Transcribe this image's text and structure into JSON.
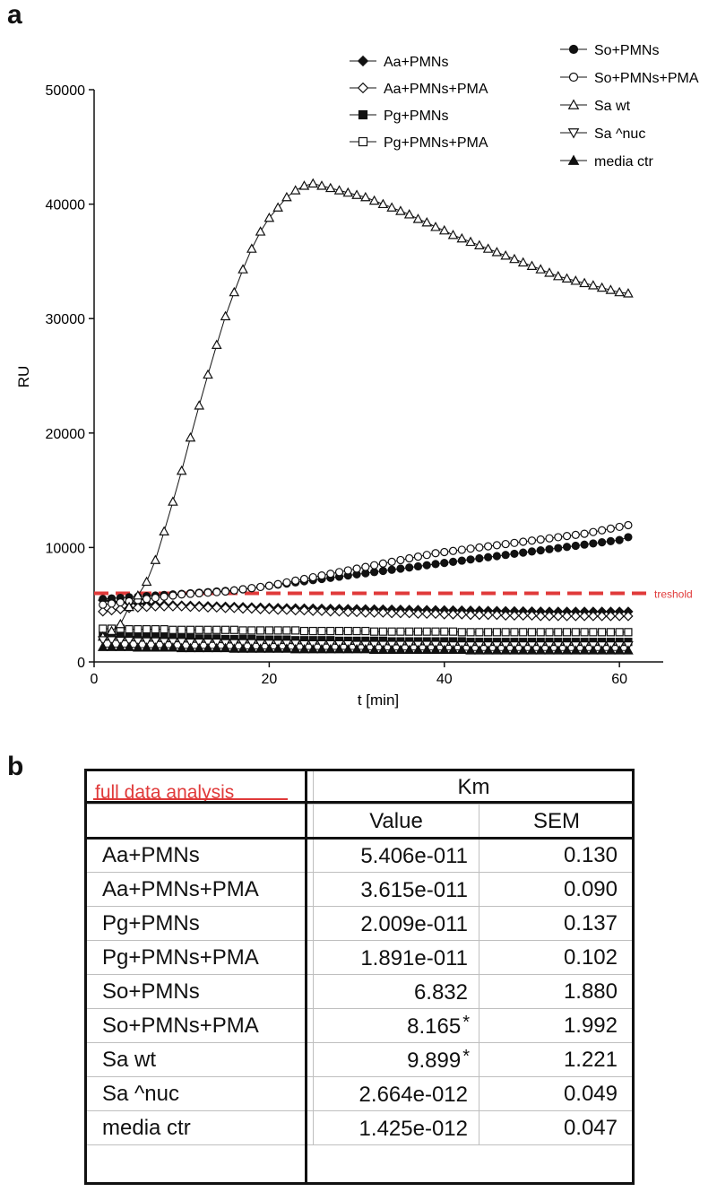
{
  "panel_a_label": "a",
  "panel_b_label": "b",
  "chart_data": {
    "type": "line",
    "title": "",
    "xlabel": "t [min]",
    "ylabel": "RU",
    "xlim": [
      0,
      65
    ],
    "ylim": [
      0,
      50000
    ],
    "xticks": [
      0,
      20,
      40,
      60
    ],
    "yticks": [
      0,
      10000,
      20000,
      30000,
      40000,
      50000
    ],
    "xtick_labels": [
      "0",
      "20",
      "40",
      "60"
    ],
    "ytick_labels": [
      "0",
      "10000",
      "20000",
      "30000",
      "40000",
      "50000"
    ],
    "x": [
      1,
      2,
      3,
      4,
      5,
      6,
      7,
      8,
      9,
      10,
      11,
      12,
      13,
      14,
      15,
      16,
      17,
      18,
      19,
      20,
      21,
      22,
      23,
      24,
      25,
      26,
      27,
      28,
      29,
      30,
      31,
      32,
      33,
      34,
      35,
      36,
      37,
      38,
      39,
      40,
      41,
      42,
      43,
      44,
      45,
      46,
      47,
      48,
      49,
      50,
      51,
      52,
      53,
      54,
      55,
      56,
      57,
      58,
      59,
      60,
      61
    ],
    "threshold": {
      "value": 6000,
      "label": "treshold",
      "color": "#e03a3a"
    },
    "series": [
      {
        "name": "Aa+PMNs",
        "marker": "diamond-filled",
        "values": [
          5400,
          5300,
          5200,
          5150,
          5100,
          5050,
          5000,
          4980,
          4960,
          4940,
          4920,
          4900,
          4880,
          4860,
          4840,
          4820,
          4800,
          4780,
          4760,
          4740,
          4720,
          4700,
          4690,
          4680,
          4670,
          4660,
          4650,
          4640,
          4630,
          4620,
          4610,
          4600,
          4590,
          4580,
          4570,
          4560,
          4550,
          4540,
          4530,
          4520,
          4510,
          4500,
          4490,
          4480,
          4470,
          4460,
          4450,
          4440,
          4430,
          4420,
          4410,
          4400,
          4400,
          4400,
          4400,
          4400,
          4400,
          4400,
          4400,
          4400,
          4400
        ]
      },
      {
        "name": "Aa+PMNs+PMA",
        "marker": "diamond-open",
        "values": [
          4400,
          4500,
          4600,
          4700,
          4750,
          4800,
          4850,
          4850,
          4850,
          4850,
          4800,
          4800,
          4750,
          4750,
          4700,
          4700,
          4650,
          4650,
          4600,
          4600,
          4550,
          4550,
          4500,
          4500,
          4450,
          4450,
          4400,
          4400,
          4350,
          4350,
          4300,
          4300,
          4300,
          4250,
          4250,
          4250,
          4200,
          4200,
          4200,
          4150,
          4150,
          4150,
          4100,
          4100,
          4100,
          4100,
          4050,
          4050,
          4050,
          4050,
          4000,
          4000,
          4000,
          4000,
          4000,
          4000,
          4000,
          4000,
          4000,
          4000,
          4000
        ]
      },
      {
        "name": "Pg+PMNs",
        "marker": "square-filled",
        "values": [
          2300,
          2300,
          2250,
          2250,
          2200,
          2200,
          2150,
          2150,
          2100,
          2100,
          2100,
          2050,
          2050,
          2050,
          2000,
          2000,
          2000,
          2000,
          1950,
          1950,
          1950,
          1950,
          1900,
          1900,
          1900,
          1900,
          1900,
          1850,
          1850,
          1850,
          1850,
          1850,
          1850,
          1800,
          1800,
          1800,
          1800,
          1800,
          1800,
          1800,
          1800,
          1800,
          1750,
          1750,
          1750,
          1750,
          1750,
          1750,
          1750,
          1750,
          1750,
          1750,
          1750,
          1750,
          1750,
          1750,
          1750,
          1750,
          1750,
          1750,
          1750
        ]
      },
      {
        "name": "Pg+PMNs+PMA",
        "marker": "square-open",
        "values": [
          2900,
          2900,
          2900,
          2850,
          2850,
          2850,
          2850,
          2850,
          2800,
          2800,
          2800,
          2800,
          2800,
          2800,
          2800,
          2800,
          2750,
          2750,
          2750,
          2750,
          2750,
          2750,
          2750,
          2700,
          2700,
          2700,
          2700,
          2700,
          2700,
          2700,
          2700,
          2650,
          2650,
          2650,
          2650,
          2650,
          2650,
          2650,
          2650,
          2650,
          2650,
          2600,
          2600,
          2600,
          2600,
          2600,
          2600,
          2600,
          2600,
          2600,
          2600,
          2600,
          2600,
          2600,
          2600,
          2600,
          2600,
          2600,
          2600,
          2600,
          2600
        ]
      },
      {
        "name": "So+PMNs",
        "marker": "circle-filled",
        "values": [
          5500,
          5550,
          5600,
          5650,
          5700,
          5750,
          5800,
          5850,
          5900,
          5950,
          6000,
          6050,
          6100,
          6150,
          6200,
          6250,
          6350,
          6450,
          6550,
          6650,
          6750,
          6850,
          6950,
          7050,
          7150,
          7250,
          7350,
          7450,
          7550,
          7650,
          7750,
          7850,
          7950,
          8050,
          8150,
          8250,
          8350,
          8450,
          8550,
          8650,
          8750,
          8850,
          8950,
          9050,
          9150,
          9250,
          9350,
          9450,
          9550,
          9650,
          9750,
          9850,
          9950,
          10050,
          10150,
          10250,
          10350,
          10450,
          10550,
          10650,
          10900
        ]
      },
      {
        "name": "So+PMNs+PMA",
        "marker": "circle-open",
        "values": [
          5000,
          5100,
          5200,
          5300,
          5400,
          5500,
          5600,
          5700,
          5800,
          5900,
          5950,
          6000,
          6050,
          6100,
          6150,
          6250,
          6350,
          6450,
          6550,
          6650,
          6800,
          6950,
          7100,
          7250,
          7400,
          7550,
          7700,
          7850,
          8000,
          8150,
          8300,
          8450,
          8600,
          8750,
          8900,
          9050,
          9200,
          9350,
          9500,
          9600,
          9700,
          9800,
          9900,
          10000,
          10100,
          10200,
          10300,
          10400,
          10500,
          10600,
          10700,
          10800,
          10900,
          11000,
          11100,
          11200,
          11350,
          11500,
          11650,
          11800,
          11950
        ]
      },
      {
        "name": "Sa wt",
        "marker": "triangle-up-open",
        "values": [
          2200,
          2700,
          3300,
          4800,
          5800,
          7000,
          8900,
          11400,
          14000,
          16700,
          19600,
          22400,
          25100,
          27700,
          30200,
          32300,
          34300,
          36100,
          37600,
          38800,
          39700,
          40600,
          41200,
          41600,
          41800,
          41600,
          41400,
          41200,
          41000,
          40800,
          40600,
          40300,
          40000,
          39700,
          39400,
          39100,
          38700,
          38400,
          38000,
          37700,
          37300,
          37000,
          36700,
          36400,
          36100,
          35800,
          35500,
          35200,
          34900,
          34600,
          34300,
          34000,
          33700,
          33500,
          33300,
          33100,
          32900,
          32700,
          32500,
          32300,
          32200
        ]
      },
      {
        "name": "Sa ^nuc",
        "marker": "triangle-down-open",
        "values": [
          1900,
          1900,
          1850,
          1850,
          1800,
          1800,
          1800,
          1750,
          1750,
          1750,
          1700,
          1700,
          1700,
          1700,
          1650,
          1650,
          1650,
          1650,
          1600,
          1600,
          1600,
          1600,
          1600,
          1550,
          1550,
          1550,
          1550,
          1550,
          1550,
          1500,
          1500,
          1500,
          1500,
          1500,
          1500,
          1500,
          1500,
          1500,
          1500,
          1450,
          1450,
          1450,
          1450,
          1450,
          1450,
          1450,
          1450,
          1450,
          1450,
          1450,
          1450,
          1450,
          1450,
          1450,
          1450,
          1450,
          1450,
          1450,
          1450,
          1450,
          1450
        ]
      },
      {
        "name": "media ctr",
        "marker": "triangle-up-filled",
        "values": [
          1300,
          1300,
          1300,
          1300,
          1250,
          1250,
          1250,
          1250,
          1250,
          1200,
          1200,
          1200,
          1200,
          1200,
          1200,
          1150,
          1150,
          1150,
          1150,
          1150,
          1150,
          1150,
          1100,
          1100,
          1100,
          1100,
          1100,
          1100,
          1100,
          1100,
          1100,
          1050,
          1050,
          1050,
          1050,
          1050,
          1050,
          1050,
          1050,
          1050,
          1050,
          1050,
          1000,
          1000,
          1000,
          1000,
          1000,
          1000,
          1000,
          1000,
          1000,
          1000,
          1000,
          1000,
          1000,
          1000,
          1000,
          1000,
          1000,
          1000,
          1000
        ]
      }
    ]
  },
  "table": {
    "corner_label": "full data analysis",
    "group_header": "Km",
    "col_value": "Value",
    "col_sem": "SEM",
    "rows": [
      {
        "name": "Aa+PMNs",
        "value": "5.406e-011",
        "star": "",
        "sem": "0.130"
      },
      {
        "name": "Aa+PMNs+PMA",
        "value": "3.615e-011",
        "star": "",
        "sem": "0.090"
      },
      {
        "name": "Pg+PMNs",
        "value": "2.009e-011",
        "star": "",
        "sem": "0.137"
      },
      {
        "name": "Pg+PMNs+PMA",
        "value": "1.891e-011",
        "star": "",
        "sem": "0.102"
      },
      {
        "name": "So+PMNs",
        "value": "6.832",
        "star": "",
        "sem": "1.880"
      },
      {
        "name": "So+PMNs+PMA",
        "value": "8.165",
        "star": "*",
        "sem": "1.992"
      },
      {
        "name": "Sa wt",
        "value": "9.899",
        "star": "*",
        "sem": "1.221"
      },
      {
        "name": "Sa ^nuc",
        "value": "2.664e-012",
        "star": "",
        "sem": "0.049"
      },
      {
        "name": "media ctr",
        "value": "1.425e-012",
        "star": "",
        "sem": "0.047"
      }
    ]
  }
}
